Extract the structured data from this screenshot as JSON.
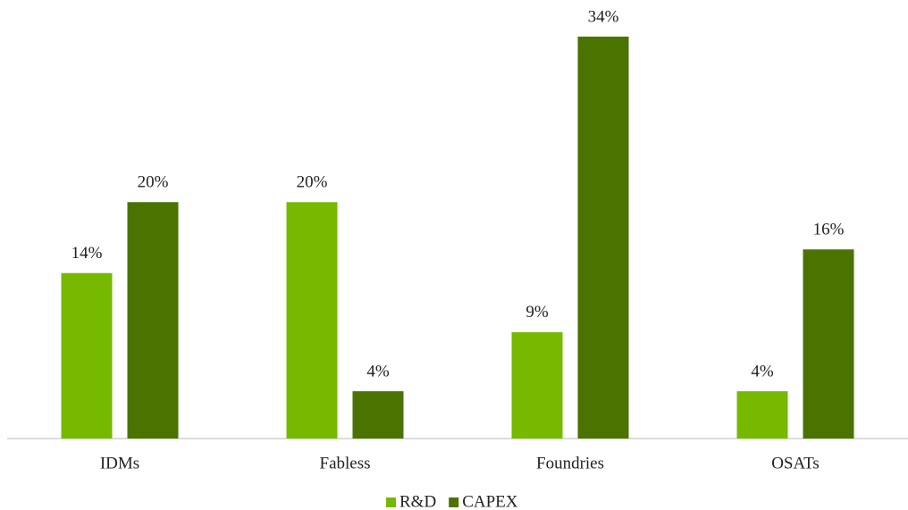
{
  "chart_data": {
    "type": "bar",
    "categories": [
      "IDMs",
      "Fabless",
      "Foundries",
      "OSATs"
    ],
    "series": [
      {
        "name": "R&D",
        "color": "#76b900",
        "values": [
          14,
          20,
          9,
          4
        ],
        "value_labels": [
          "14%",
          "20%",
          "9%",
          "4%"
        ]
      },
      {
        "name": "CAPEX",
        "color": "#4a7300",
        "values": [
          20,
          4,
          34,
          16
        ],
        "value_labels": [
          "20%",
          "4%",
          "34%",
          "16%"
        ]
      }
    ],
    "legend": "bottom"
  }
}
